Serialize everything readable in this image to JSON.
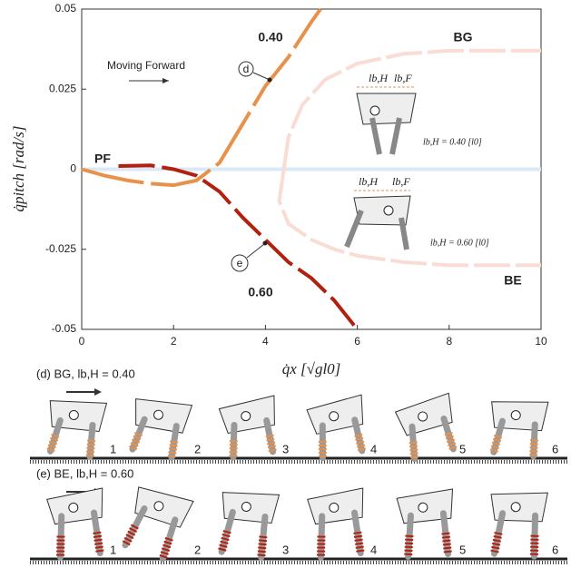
{
  "chart_data": {
    "type": "line",
    "x_label": "q̇x [√gl0]",
    "y_label": "q̇pitch [rad/s]",
    "xlim": [
      0,
      10
    ],
    "xticks": [
      0,
      2,
      4,
      6,
      8,
      10
    ],
    "ylim": [
      -0.05,
      0.05
    ],
    "yticks": [
      -0.05,
      -0.025,
      0,
      0.025,
      0.05
    ],
    "series": [
      {
        "name": "PF",
        "color": "#dbe9f7",
        "x": [
          0,
          10
        ],
        "values": [
          0,
          0
        ]
      },
      {
        "name": "BG",
        "color": "#f9dcd3",
        "x": [
          4.4,
          4.5,
          4.8,
          5.3,
          6,
          7,
          8,
          9,
          10
        ],
        "values": [
          0,
          0.01,
          0.02,
          0.028,
          0.033,
          0.036,
          0.037,
          0.037,
          0.037
        ]
      },
      {
        "name": "BE",
        "color": "#f9dcd3",
        "x": [
          4.4,
          4.3,
          4.5,
          5,
          5.5,
          6,
          7,
          8,
          9,
          10
        ],
        "values": [
          0,
          -0.01,
          -0.017,
          -0.022,
          -0.025,
          -0.027,
          -0.029,
          -0.03,
          -0.03,
          -0.03
        ]
      },
      {
        "name": "0.40",
        "color": "#e8914a",
        "x": [
          0,
          0.5,
          1,
          1.5,
          2,
          2.5,
          3,
          3.5,
          4,
          4.5,
          5,
          5.2
        ],
        "values": [
          0,
          -0.002,
          -0.0035,
          -0.0045,
          -0.005,
          -0.0035,
          0.002,
          0.014,
          0.026,
          0.035,
          0.046,
          0.05
        ]
      },
      {
        "name": "0.60",
        "color": "#b22010",
        "x": [
          0.8,
          1.5,
          2,
          2.5,
          3,
          3.5,
          4,
          4.5,
          5,
          5.5,
          6
        ],
        "values": [
          0.001,
          0.0012,
          0,
          -0.002,
          -0.007,
          -0.015,
          -0.022,
          -0.029,
          -0.034,
          -0.041,
          -0.05
        ]
      }
    ],
    "annotations": {
      "moving": "Moving Forward",
      "d": "d",
      "e": "e",
      "lbh": "lb,H",
      "lbf": "lb,F",
      "inset_top": "lb,H = 0.40 [l0]",
      "inset_bottom": "lb,H = 0.60 [l0]"
    }
  },
  "panels": [
    {
      "title": "(d) BG, lb,H = 0.40",
      "color": "#e8914a",
      "frames": [
        "1",
        "2",
        "3",
        "4",
        "5",
        "6"
      ]
    },
    {
      "title": "(e) BE, lb,H = 0.60",
      "color": "#b22010",
      "frames": [
        "1",
        "2",
        "3",
        "4",
        "5",
        "6"
      ]
    }
  ]
}
